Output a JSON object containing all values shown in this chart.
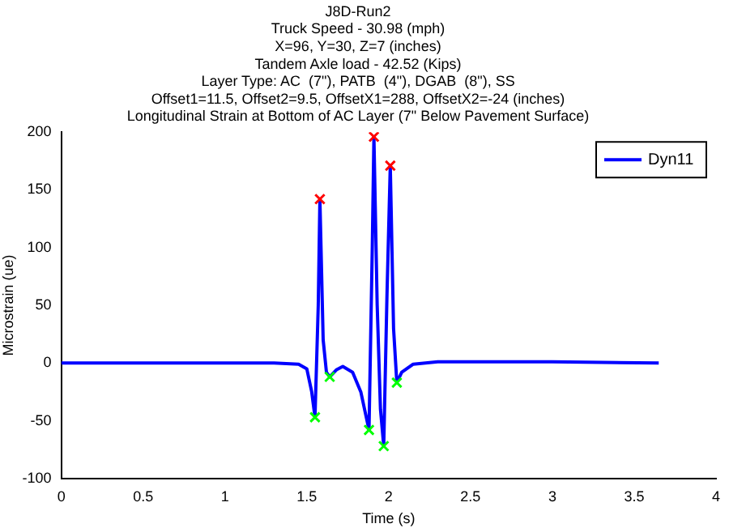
{
  "chart_data": {
    "type": "line",
    "title": "J8D-Run2",
    "subtitle": "Truck Speed - 30.98 (mph)\nX=96, Y=30, Z=7 (inches)\nTandem Axle load - 42.52 (Kips)\nLayer Type: AC  (7\"), PATB  (4\"), DGAB  (8\"), SS\nOffset1=11.5, Offset2=9.5, OffsetX1=288, OffsetX2=-24 (inches)\nLongitudinal Strain at Bottom of AC Layer (7\" Below Pavement Surface)",
    "xlabel": "Time (s)",
    "ylabel": "Microstrain (ue)",
    "xlim": [
      0,
      4
    ],
    "xticks": [
      0,
      0.5,
      1,
      1.5,
      2,
      2.5,
      3,
      3.5,
      4
    ],
    "ylim": [
      -100,
      200
    ],
    "yticks": [
      -100,
      -50,
      0,
      50,
      100,
      150,
      200
    ],
    "grid": false,
    "legend": "top right",
    "series": [
      {
        "name": "Dyn11",
        "color": "#0000ff",
        "marker": "none",
        "x": [
          0,
          0.5,
          1,
          1.3,
          1.45,
          1.5,
          1.53,
          1.55,
          1.57,
          1.58,
          1.6,
          1.62,
          1.64,
          1.68,
          1.72,
          1.78,
          1.83,
          1.88,
          1.9,
          1.91,
          1.93,
          1.95,
          1.97,
          1.99,
          2.01,
          2.03,
          2.05,
          2.08,
          2.15,
          2.3,
          3,
          3.65
        ],
        "values": [
          0,
          0,
          0,
          0,
          -1,
          -5,
          -25,
          -47,
          50,
          142,
          20,
          -8,
          -12,
          -6,
          -3,
          -8,
          -25,
          -58,
          100,
          196,
          50,
          -40,
          -72,
          60,
          171,
          30,
          -17,
          -8,
          -1,
          1,
          1,
          0
        ]
      },
      {
        "color": "#ff0000",
        "type": "scatter",
        "marker": "cross",
        "x": [
          1.58,
          1.91,
          2.01
        ],
        "values": [
          142,
          196,
          171
        ]
      },
      {
        "color": "#00ff00",
        "type": "scatter",
        "marker": "cross",
        "x": [
          1.55,
          1.64,
          1.88,
          1.97,
          2.05
        ],
        "values": [
          -47,
          -12,
          -58,
          -72,
          -17
        ]
      }
    ]
  }
}
